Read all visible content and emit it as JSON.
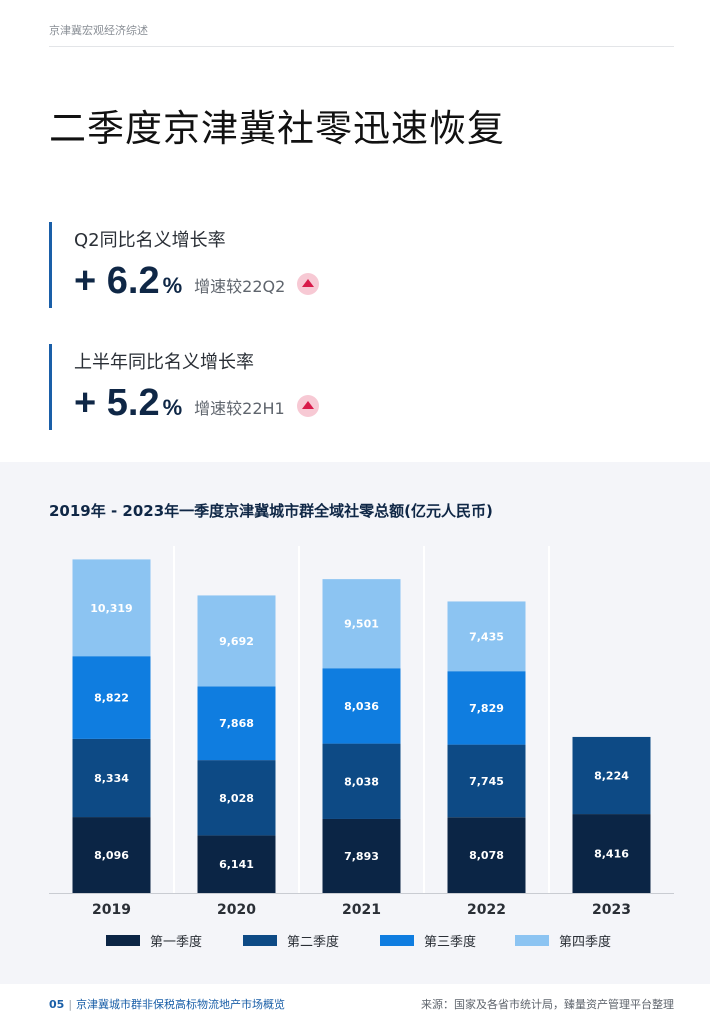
{
  "header": {
    "running_title": "京津冀宏观经济综述"
  },
  "page_title": "二季度京津冀社零迅速恢复",
  "kpis": [
    {
      "label": "Q2同比名义增长率",
      "value": "+ 6.2",
      "unit": "%",
      "note": "增速较22Q2",
      "trend": "up"
    },
    {
      "label": "上半年同比名义增长率",
      "value": "+ 5.2",
      "unit": "%",
      "note": "增速较22H1",
      "trend": "up"
    }
  ],
  "chart_data": {
    "type": "bar",
    "stacked": true,
    "title": "2019年 - 2023年一季度京津冀城市群全域社零总额(亿元人民币)",
    "categories": [
      "2019",
      "2020",
      "2021",
      "2022",
      "2023"
    ],
    "series": [
      {
        "name": "第一季度",
        "color": "#0b2545",
        "values": [
          8096,
          6141,
          7893,
          8078,
          8416
        ]
      },
      {
        "name": "第二季度",
        "color": "#0d4a85",
        "values": [
          8334,
          8028,
          8038,
          7745,
          8224
        ]
      },
      {
        "name": "第三季度",
        "color": "#0f7de0",
        "values": [
          8822,
          7868,
          8036,
          7829,
          null
        ]
      },
      {
        "name": "第四季度",
        "color": "#8cc4f2",
        "values": [
          10319,
          9692,
          9501,
          7435,
          null
        ]
      }
    ],
    "data_labels": [
      [
        "8,096",
        "6,141",
        "7,893",
        "8,078",
        "8,416"
      ],
      [
        "8,334",
        "8,028",
        "8,038",
        "7,745",
        "8,224"
      ],
      [
        "8,822",
        "7,868",
        "8,036",
        "7,829",
        ""
      ],
      [
        "10,319",
        "9,692",
        "9,501",
        "7,435",
        ""
      ]
    ],
    "ylim": [
      0,
      37000
    ],
    "grid": false,
    "legend_position": "bottom"
  },
  "footer": {
    "page_number": "05",
    "report_title": "京津冀城市群非保税高标物流地产市场概览",
    "source": "来源：国家及各省市统计局，臻量资产管理平台整理"
  }
}
